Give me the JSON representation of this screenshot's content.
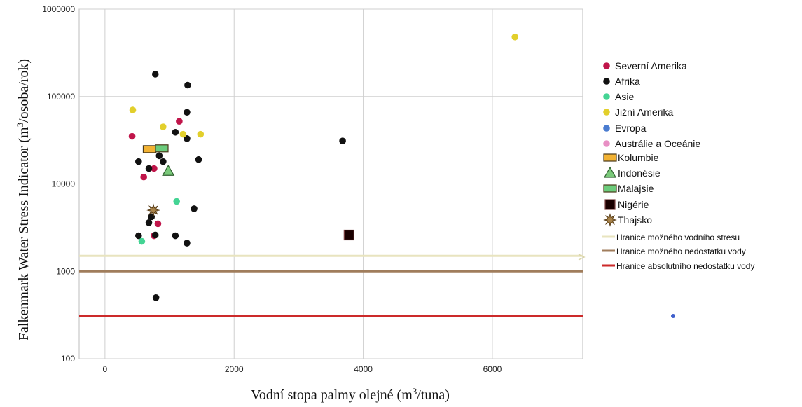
{
  "chart_data": {
    "type": "scatter",
    "title": "",
    "xlabel_main": "Vodní stopa palmy olejné (m",
    "xlabel_sup": "3",
    "xlabel_end": "/tuna)",
    "ylabel_main": "Falkenmark Water Stress Indicator (m",
    "ylabel_sup": "3",
    "ylabel_end": "/osoba/rok)",
    "xlim": [
      -400,
      7400
    ],
    "ylim": [
      100,
      1000000
    ],
    "y_scale": "log",
    "grid": true,
    "legend_position": "right",
    "x_ticks": [
      0,
      2000,
      4000,
      6000
    ],
    "x_tick_labels": [
      "0",
      "2000",
      "4000",
      "6000"
    ],
    "y_ticks": [
      100,
      1000,
      10000,
      100000,
      1000000
    ],
    "y_tick_labels": [
      "100",
      "1000",
      "10000",
      "100000",
      "1000000"
    ],
    "series": [
      {
        "name": "Severní Amerika",
        "color": "#c0154a",
        "marker": "circle",
        "points": [
          [
            420,
            35000
          ],
          [
            1150,
            52000
          ],
          [
            600,
            12000
          ],
          [
            760,
            15000
          ],
          [
            820,
            3500
          ],
          [
            760,
            2550
          ]
        ]
      },
      {
        "name": "Afrika",
        "color": "#111111",
        "marker": "circle",
        "points": [
          [
            780,
            180000
          ],
          [
            1280,
            135000
          ],
          [
            1270,
            66000
          ],
          [
            1090,
            39000
          ],
          [
            1270,
            33000
          ],
          [
            520,
            18000
          ],
          [
            900,
            18000
          ],
          [
            680,
            15000
          ],
          [
            1450,
            19000
          ],
          [
            840,
            21000
          ],
          [
            1380,
            5200
          ],
          [
            720,
            4200
          ],
          [
            680,
            3600
          ],
          [
            520,
            2550
          ],
          [
            780,
            2600
          ],
          [
            1090,
            2550
          ],
          [
            1270,
            2100
          ],
          [
            790,
            500
          ],
          [
            3680,
            31000
          ]
        ]
      },
      {
        "name": "Asie",
        "color": "#44d494",
        "marker": "circle",
        "points": [
          [
            1110,
            6300
          ],
          [
            570,
            2200
          ]
        ]
      },
      {
        "name": "Jižní Amerika",
        "color": "#e2cf2b",
        "marker": "circle",
        "points": [
          [
            6350,
            480000
          ],
          [
            430,
            70000
          ],
          [
            900,
            45000
          ],
          [
            1210,
            37000
          ],
          [
            1480,
            37000
          ]
        ]
      },
      {
        "name": "Evropa",
        "color": "#4a7cd0",
        "marker": "circle",
        "points": []
      },
      {
        "name": "Austrálie a Oceánie",
        "color": "#e88fc4",
        "marker": "circle",
        "points": []
      },
      {
        "name": "Kolumbie",
        "color": "#f2b233",
        "marker": "rect",
        "points": [
          [
            690,
            25000
          ]
        ]
      },
      {
        "name": "Indonésie",
        "color": "#7ac97a",
        "marker": "triangle",
        "points": [
          [
            980,
            14000
          ]
        ]
      },
      {
        "name": "Malajsie",
        "color": "#6ccc7c",
        "marker": "rect",
        "points": [
          [
            880,
            25500
          ]
        ]
      },
      {
        "name": "Nigérie",
        "color": "#1a0000",
        "marker": "square",
        "points": [
          [
            3780,
            2600
          ]
        ]
      },
      {
        "name": "Thajsko",
        "color": "#a9844b",
        "marker": "star",
        "points": [
          [
            750,
            5000
          ]
        ]
      }
    ],
    "reference_lines": [
      {
        "name": "Hranice možného vodního stresu",
        "y": 1500,
        "color": "#e8e4bf"
      },
      {
        "name": "Hranice možného nedostatku vody",
        "y": 1000,
        "color": "#a07d5c"
      },
      {
        "name": "Hranice absolutního nedostatku vody",
        "y": 310,
        "color": "#cc2a2a"
      }
    ],
    "legend_items": [
      {
        "label": "Severní Amerika",
        "marker": "circle",
        "color": "#c0154a"
      },
      {
        "label": "Afrika",
        "marker": "circle",
        "color": "#111111"
      },
      {
        "label": "Asie",
        "marker": "circle",
        "color": "#44d494"
      },
      {
        "label": "Jižní Amerika",
        "marker": "circle",
        "color": "#e2cf2b"
      },
      {
        "label": "Evropa",
        "marker": "circle",
        "color": "#4a7cd0"
      },
      {
        "label": "Austrálie a Oceánie",
        "marker": "circle",
        "color": "#e88fc4"
      },
      {
        "label": "Kolumbie",
        "marker": "rect",
        "color": "#f2b233"
      },
      {
        "label": "Indonésie",
        "marker": "triangle",
        "color": "#7ac97a"
      },
      {
        "label": "Malajsie",
        "marker": "rect",
        "color": "#6ccc7c"
      },
      {
        "label": "Nigérie",
        "marker": "square",
        "color": "#1a0000"
      },
      {
        "label": "Thajsko",
        "marker": "star",
        "color": "#a9844b"
      },
      {
        "label": "Hranice možného vodního stresu",
        "marker": "line",
        "color": "#e8e4bf"
      },
      {
        "label": "Hranice možného nedostatku vody",
        "marker": "line",
        "color": "#a07d5c"
      },
      {
        "label": "Hranice absolutního nedostatku vody",
        "marker": "line",
        "color": "#cc2a2a"
      }
    ]
  }
}
